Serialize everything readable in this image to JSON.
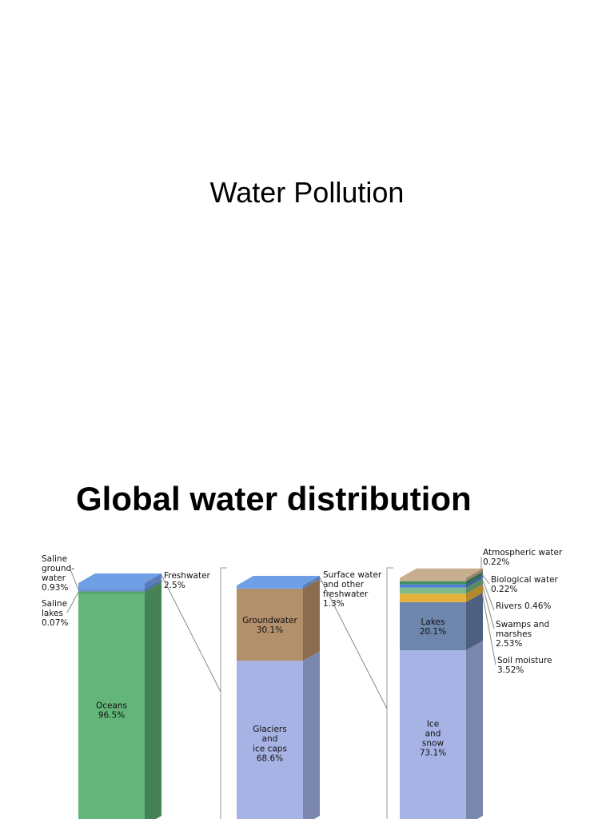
{
  "slide1": {
    "title": "Water Pollution"
  },
  "slide2": {
    "title": "Global water distribution",
    "chart_data": {
      "type": "bar",
      "stacked": true,
      "columns": [
        {
          "name": "column-total-water",
          "segments": [
            {
              "name": "Oceans",
              "value": 96.5,
              "color": "#63b57a",
              "side": "#448256",
              "label": "Oceans\n96.5%",
              "label_inside": true
            },
            {
              "name": "Saline lakes",
              "value": 0.07,
              "color": "#5aa56e",
              "side": "#448256",
              "label": "Saline\nlakes\n0.07%",
              "label_inside": false
            },
            {
              "name": "Saline groundwater",
              "value": 0.93,
              "color": "#6c8fd6",
              "side": "#4e6aa8",
              "label": "Saline\nground-\nwater\n0.93%",
              "label_inside": false
            },
            {
              "name": "Freshwater",
              "value": 2.5,
              "color": "#6fa0e6",
              "side": "#557cbf",
              "label": "Freshwater\n2.5%",
              "label_inside": false
            }
          ]
        },
        {
          "name": "column-freshwater",
          "segments": [
            {
              "name": "Glaciers and ice caps",
              "value": 68.6,
              "color": "#a7b3e5",
              "side": "#7b86ad",
              "label": "Glaciers\nand\nice caps\n68.6%",
              "label_inside": true
            },
            {
              "name": "Groundwater",
              "value": 30.1,
              "color": "#b3906c",
              "side": "#8a6d50",
              "label": "Groundwater\n30.1%",
              "label_inside": true
            },
            {
              "name": "Surface water and other freshwater",
              "value": 1.3,
              "color": "#6fa0e6",
              "side": "#557cbf",
              "label": "Surface water\nand other\nfreshwater\n1.3%",
              "label_inside": false
            }
          ]
        },
        {
          "name": "column-surface-water",
          "segments": [
            {
              "name": "Ice and snow",
              "value": 73.1,
              "color": "#a7b3e5",
              "side": "#7b86ad",
              "label": "Ice\nand\nsnow\n73.1%",
              "label_inside": true
            },
            {
              "name": "Lakes",
              "value": 20.1,
              "color": "#6f86ac",
              "side": "#4e6080",
              "label": "Lakes\n20.1%",
              "label_inside": true
            },
            {
              "name": "Soil moisture",
              "value": 3.52,
              "color": "#e6b13a",
              "side": "#b38828",
              "label": "Soil moisture\n3.52%",
              "label_inside": false
            },
            {
              "name": "Swamps and marshes",
              "value": 2.53,
              "color": "#7dbb8a",
              "side": "#5a8a63",
              "label": "Swamps and\nmarshes\n2.53%",
              "label_inside": false
            },
            {
              "name": "Rivers",
              "value": 0.46,
              "color": "#4f7fd0",
              "side": "#3a5f9c",
              "label": "Rivers  0.46%",
              "label_inside": false
            },
            {
              "name": "Biological water",
              "value": 0.22,
              "color": "#3f8f62",
              "side": "#2e6a48",
              "label": "Biological water\n0.22%",
              "label_inside": false
            },
            {
              "name": "Atmospheric water",
              "value": 0.22,
              "color": "#c6ad8e",
              "side": "#9a866c",
              "label": "Atmospheric water\n0.22%",
              "label_inside": false
            }
          ]
        }
      ],
      "grid": false,
      "legend": "none"
    }
  }
}
